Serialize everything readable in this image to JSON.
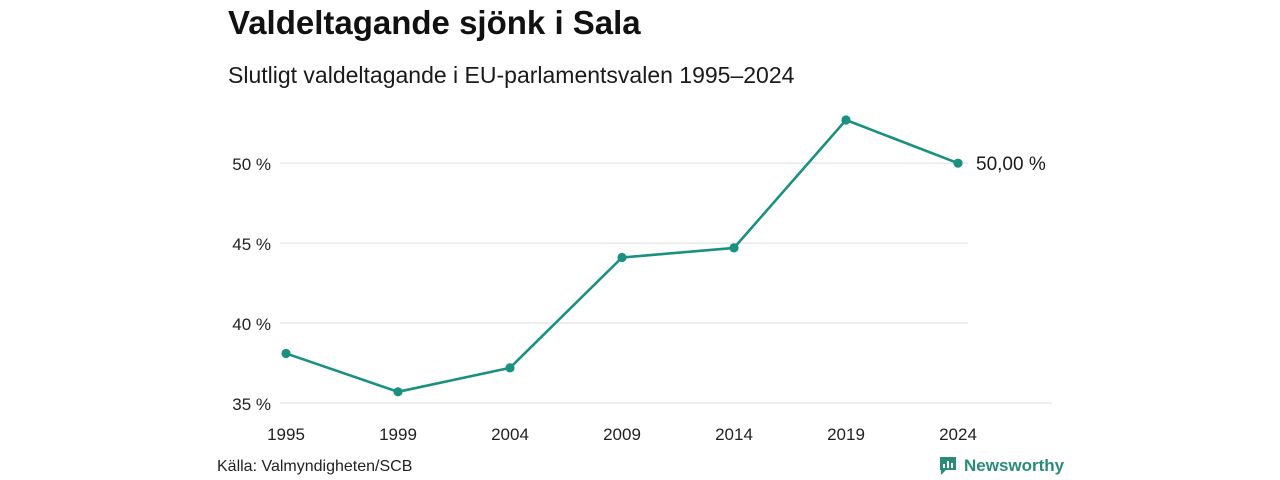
{
  "header": {
    "title": "Valdeltagande sjönk i Sala",
    "subtitle": "Slutligt valdeltagande i EU-parlamentsvalen 1995–2024"
  },
  "footer": {
    "source": "Källa: Valmyndigheten/SCB",
    "brand": "Newsworthy"
  },
  "colors": {
    "line": "#1a9080",
    "grid": "#dddddd",
    "brand": "#2a8c78"
  },
  "chart_data": {
    "type": "line",
    "title": "Valdeltagande sjönk i Sala",
    "subtitle": "Slutligt valdeltagande i EU-parlamentsvalen 1995–2024",
    "xlabel": "",
    "ylabel": "",
    "categories": [
      "1995",
      "1999",
      "2004",
      "2009",
      "2014",
      "2019",
      "2024"
    ],
    "series": [
      {
        "values": [
          38.1,
          35.7,
          37.2,
          44.1,
          44.7,
          52.7,
          50.0
        ]
      }
    ],
    "yticks": [
      35,
      40,
      45,
      50
    ],
    "ytick_labels": [
      "35 %",
      "40 %",
      "45 %",
      "50 %"
    ],
    "ylim": [
      35,
      52.7
    ],
    "end_label": "50,00 %",
    "grid": true,
    "legend": "none"
  }
}
